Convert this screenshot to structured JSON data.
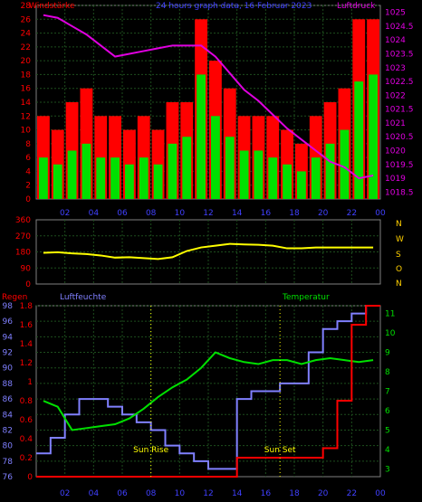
{
  "header": {
    "left_label": "Windstärke",
    "center_label": "24 hours graph data, 16 Februar 2023",
    "right_label": "Luftdruck"
  },
  "x_ticks": [
    "02",
    "04",
    "06",
    "08",
    "10",
    "12",
    "14",
    "16",
    "18",
    "20",
    "22",
    "00"
  ],
  "sun": {
    "rise_label": "Sun Rise",
    "set_label": "Sun Set",
    "rise_time": "08",
    "set_time": "17"
  },
  "colors": {
    "wind_avg": "#00e000",
    "wind_gust": "#ff0000",
    "pressure": "#e000e0",
    "direction": "#ffff00",
    "humidity": "#8080ff",
    "temperature": "#00e000",
    "rain": "#ff0000",
    "compass": "#ffd000",
    "grid": "#1d4d1d"
  },
  "chart_data": [
    {
      "type": "bar",
      "title": "24 hours graph data, 16 Februar 2023",
      "left_axis_label": "Windstärke",
      "right_axis_label": "Luftdruck",
      "left_ticks": [
        "0",
        "2",
        "4",
        "6",
        "8",
        "10",
        "12",
        "14",
        "16",
        "18",
        "20",
        "22",
        "24",
        "26",
        "28"
      ],
      "right_ticks": [
        "1018.5",
        "1019",
        "1019.5",
        "1020",
        "1020.5",
        "1021",
        "1021.5",
        "1022",
        "1022.5",
        "1023",
        "1023.5",
        "1024",
        "1024.5",
        "1025"
      ],
      "ylim_left": [
        0,
        28
      ],
      "ylim_right": [
        1018.25,
        1025.25
      ],
      "x": [
        "01",
        "02",
        "03",
        "04",
        "05",
        "06",
        "07",
        "08",
        "09",
        "10",
        "11",
        "12",
        "13",
        "14",
        "15",
        "16",
        "17",
        "18",
        "19",
        "20",
        "21",
        "22",
        "23",
        "00"
      ],
      "series": [
        {
          "role": "wind_gust",
          "values": [
            12,
            10,
            14,
            16,
            12,
            12,
            10,
            12,
            10,
            14,
            14,
            26,
            20,
            16,
            12,
            12,
            12,
            10,
            8,
            12,
            14,
            16,
            26,
            26
          ]
        },
        {
          "role": "wind_avg",
          "values": [
            6,
            5,
            7,
            8,
            6,
            6,
            5,
            6,
            5,
            8,
            9,
            18,
            12,
            9,
            7,
            7,
            6,
            5,
            4,
            6,
            8,
            10,
            17,
            18
          ]
        },
        {
          "role": "pressure",
          "values": [
            1024.9,
            1024.8,
            1024.5,
            1024.2,
            1023.8,
            1023.4,
            1023.5,
            1023.6,
            1023.7,
            1023.8,
            1023.8,
            1023.8,
            1023.4,
            1022.8,
            1022.2,
            1021.8,
            1021.3,
            1020.8,
            1020.4,
            1020.0,
            1019.6,
            1019.4,
            1019.0,
            1019.1
          ]
        }
      ]
    },
    {
      "type": "line",
      "left_ticks": [
        "0",
        "90",
        "180",
        "270",
        "360"
      ],
      "ylim": [
        0,
        360
      ],
      "compass_labels": [
        "N",
        "W",
        "S",
        "O",
        "N"
      ],
      "x": [
        "01",
        "02",
        "03",
        "04",
        "05",
        "06",
        "07",
        "08",
        "09",
        "10",
        "11",
        "12",
        "13",
        "14",
        "15",
        "16",
        "17",
        "18",
        "19",
        "20",
        "21",
        "22",
        "23",
        "00"
      ],
      "series": [
        {
          "role": "direction",
          "values": [
            175,
            178,
            172,
            168,
            160,
            148,
            150,
            145,
            140,
            150,
            185,
            205,
            215,
            225,
            222,
            220,
            215,
            200,
            200,
            205,
            205,
            205,
            205,
            205
          ]
        }
      ]
    },
    {
      "type": "line",
      "labels": {
        "regen": "Regen",
        "luftfeuchte": "Luftfeuchte",
        "temperatur": "Temperatur"
      },
      "humidity_ticks": [
        "76",
        "78",
        "80",
        "82",
        "84",
        "86",
        "88",
        "90",
        "92",
        "94",
        "96",
        "98"
      ],
      "rain_ticks": [
        "0",
        "0.2",
        "0.4",
        "0.6",
        "0.8",
        "1",
        "1.2",
        "1.4",
        "1.6",
        "1.8"
      ],
      "temp_ticks": [
        "3",
        "4",
        "5",
        "6",
        "7",
        "8",
        "9",
        "10",
        "11"
      ],
      "ylim_humidity": [
        76,
        98
      ],
      "ylim_rain": [
        0,
        1.8
      ],
      "ylim_temp": [
        2.6,
        11.4
      ],
      "x": [
        "01",
        "02",
        "03",
        "04",
        "05",
        "06",
        "07",
        "08",
        "09",
        "10",
        "11",
        "12",
        "13",
        "14",
        "15",
        "16",
        "17",
        "18",
        "19",
        "20",
        "21",
        "22",
        "23",
        "00"
      ],
      "series": [
        {
          "role": "humidity",
          "values": [
            79,
            81,
            84,
            86,
            86,
            85,
            84,
            83,
            82,
            80,
            79,
            78,
            77,
            77,
            86,
            87,
            87,
            88,
            88,
            92,
            95,
            96,
            97,
            98
          ]
        },
        {
          "role": "temperature",
          "values": [
            6.5,
            6.2,
            5.0,
            5.1,
            5.2,
            5.3,
            5.6,
            6.1,
            6.7,
            7.2,
            7.6,
            8.2,
            9.0,
            8.7,
            8.5,
            8.4,
            8.6,
            8.6,
            8.4,
            8.6,
            8.7,
            8.6,
            8.5,
            8.6
          ]
        },
        {
          "role": "rain",
          "values": [
            0,
            0,
            0,
            0,
            0,
            0,
            0,
            0,
            0,
            0,
            0,
            0,
            0,
            0,
            0.2,
            0.2,
            0.2,
            0.2,
            0.2,
            0.2,
            0.3,
            0.8,
            1.6,
            1.8
          ]
        }
      ]
    }
  ]
}
